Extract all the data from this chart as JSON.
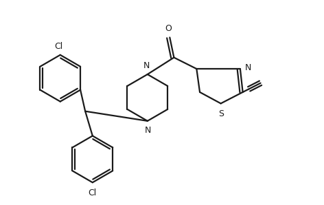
{
  "background_color": "#ffffff",
  "line_color": "#1a1a1a",
  "line_width": 1.6,
  "label_fontsize": 9.0,
  "figsize": [
    4.72,
    2.98
  ],
  "dpi": 100,
  "xlim": [
    0,
    10
  ],
  "ylim": [
    0,
    6.3
  ]
}
